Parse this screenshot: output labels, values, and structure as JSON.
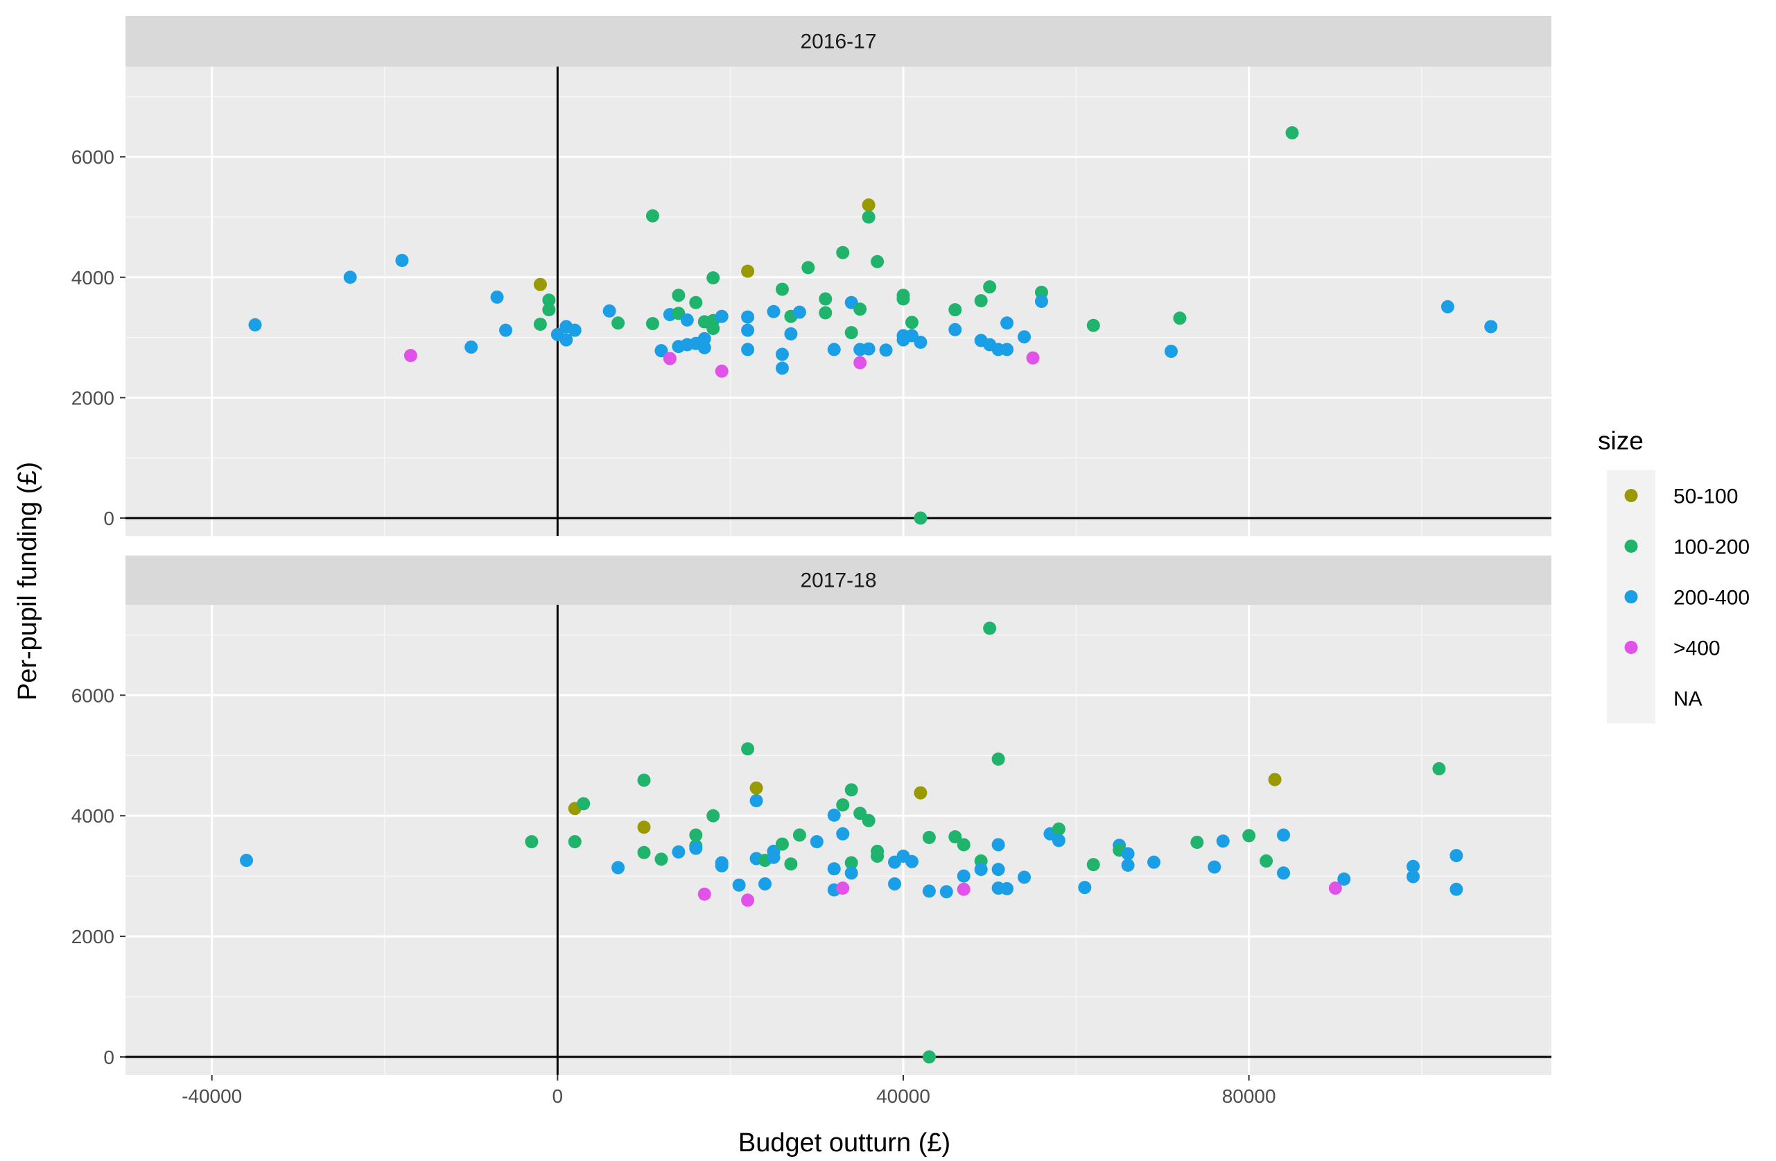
{
  "chart_data": {
    "type": "scatter",
    "xlabel": "Budget outturn (£)",
    "ylabel": "Per-pupil funding (£)",
    "xlim": [
      -50000,
      115000
    ],
    "ylim": [
      -300,
      7500
    ],
    "x_ticks": [
      -40000,
      0,
      40000,
      80000
    ],
    "x_tick_labels": [
      "-40000",
      "0",
      "40000",
      "80000"
    ],
    "y_ticks": [
      0,
      2000,
      4000,
      6000
    ],
    "y_tick_labels": [
      "0",
      "2000",
      "4000",
      "6000"
    ],
    "grid": true,
    "reference_lines": {
      "x": 0,
      "y": 0
    },
    "legend": {
      "title": "size",
      "position": "right",
      "entries": [
        {
          "label": "50-100",
          "color": "#999900"
        },
        {
          "label": "100-200",
          "color": "#1fb36b"
        },
        {
          "label": "200-400",
          "color": "#1a9fe6"
        },
        {
          "label": ">400",
          "color": "#e052e8"
        },
        {
          "label": "NA",
          "color": null
        }
      ]
    },
    "panels": [
      {
        "label": "2016-17",
        "points": [
          {
            "x": -35000,
            "y": 3210,
            "size": "200-400"
          },
          {
            "x": -24000,
            "y": 4000,
            "size": "200-400"
          },
          {
            "x": -18000,
            "y": 4280,
            "size": "200-400"
          },
          {
            "x": -17000,
            "y": 2700,
            "size": ">400"
          },
          {
            "x": -10000,
            "y": 2840,
            "size": "200-400"
          },
          {
            "x": -7000,
            "y": 3670,
            "size": "200-400"
          },
          {
            "x": -6000,
            "y": 3120,
            "size": "200-400"
          },
          {
            "x": -2000,
            "y": 3880,
            "size": "50-100"
          },
          {
            "x": -2000,
            "y": 3220,
            "size": "100-200"
          },
          {
            "x": -1000,
            "y": 3620,
            "size": "100-200"
          },
          {
            "x": -1000,
            "y": 3460,
            "size": "100-200"
          },
          {
            "x": 0,
            "y": 3050,
            "size": "200-400"
          },
          {
            "x": 1000,
            "y": 3180,
            "size": "200-400"
          },
          {
            "x": 1000,
            "y": 2960,
            "size": "200-400"
          },
          {
            "x": 2000,
            "y": 3120,
            "size": "200-400"
          },
          {
            "x": 6000,
            "y": 3440,
            "size": "200-400"
          },
          {
            "x": 7000,
            "y": 3240,
            "size": "100-200"
          },
          {
            "x": 11000,
            "y": 5020,
            "size": "100-200"
          },
          {
            "x": 11000,
            "y": 3230,
            "size": "100-200"
          },
          {
            "x": 12000,
            "y": 2780,
            "size": "200-400"
          },
          {
            "x": 13000,
            "y": 3380,
            "size": "200-400"
          },
          {
            "x": 13000,
            "y": 2650,
            "size": ">400"
          },
          {
            "x": 14000,
            "y": 3700,
            "size": "100-200"
          },
          {
            "x": 14000,
            "y": 3400,
            "size": "100-200"
          },
          {
            "x": 14000,
            "y": 2850,
            "size": "200-400"
          },
          {
            "x": 15000,
            "y": 3290,
            "size": "200-400"
          },
          {
            "x": 15000,
            "y": 2880,
            "size": "200-400"
          },
          {
            "x": 16000,
            "y": 3580,
            "size": "100-200"
          },
          {
            "x": 16000,
            "y": 2900,
            "size": "200-400"
          },
          {
            "x": 17000,
            "y": 3260,
            "size": "100-200"
          },
          {
            "x": 17000,
            "y": 2980,
            "size": "200-400"
          },
          {
            "x": 17000,
            "y": 2830,
            "size": "200-400"
          },
          {
            "x": 18000,
            "y": 3990,
            "size": "100-200"
          },
          {
            "x": 18000,
            "y": 3280,
            "size": "100-200"
          },
          {
            "x": 18000,
            "y": 3150,
            "size": "100-200"
          },
          {
            "x": 19000,
            "y": 3350,
            "size": "200-400"
          },
          {
            "x": 19000,
            "y": 2440,
            "size": ">400"
          },
          {
            "x": 22000,
            "y": 4100,
            "size": "50-100"
          },
          {
            "x": 22000,
            "y": 3340,
            "size": "200-400"
          },
          {
            "x": 22000,
            "y": 3120,
            "size": "200-400"
          },
          {
            "x": 22000,
            "y": 2800,
            "size": "200-400"
          },
          {
            "x": 25000,
            "y": 3430,
            "size": "200-400"
          },
          {
            "x": 26000,
            "y": 3800,
            "size": "100-200"
          },
          {
            "x": 26000,
            "y": 2720,
            "size": "200-400"
          },
          {
            "x": 26000,
            "y": 2490,
            "size": "200-400"
          },
          {
            "x": 27000,
            "y": 3350,
            "size": "100-200"
          },
          {
            "x": 27000,
            "y": 3060,
            "size": "200-400"
          },
          {
            "x": 28000,
            "y": 3420,
            "size": "200-400"
          },
          {
            "x": 29000,
            "y": 4160,
            "size": "100-200"
          },
          {
            "x": 31000,
            "y": 3640,
            "size": "100-200"
          },
          {
            "x": 31000,
            "y": 3410,
            "size": "100-200"
          },
          {
            "x": 32000,
            "y": 2800,
            "size": "200-400"
          },
          {
            "x": 33000,
            "y": 4410,
            "size": "100-200"
          },
          {
            "x": 34000,
            "y": 3580,
            "size": "200-400"
          },
          {
            "x": 34000,
            "y": 3080,
            "size": "100-200"
          },
          {
            "x": 35000,
            "y": 3470,
            "size": "100-200"
          },
          {
            "x": 35000,
            "y": 2800,
            "size": "200-400"
          },
          {
            "x": 35000,
            "y": 2580,
            "size": ">400"
          },
          {
            "x": 36000,
            "y": 5200,
            "size": "50-100"
          },
          {
            "x": 36000,
            "y": 5000,
            "size": "100-200"
          },
          {
            "x": 36000,
            "y": 2810,
            "size": "200-400"
          },
          {
            "x": 37000,
            "y": 4260,
            "size": "100-200"
          },
          {
            "x": 38000,
            "y": 2790,
            "size": "200-400"
          },
          {
            "x": 40000,
            "y": 3700,
            "size": "100-200"
          },
          {
            "x": 40000,
            "y": 3640,
            "size": "100-200"
          },
          {
            "x": 40000,
            "y": 3030,
            "size": "200-400"
          },
          {
            "x": 40000,
            "y": 2960,
            "size": "200-400"
          },
          {
            "x": 41000,
            "y": 3250,
            "size": "100-200"
          },
          {
            "x": 41000,
            "y": 3030,
            "size": "200-400"
          },
          {
            "x": 42000,
            "y": 2920,
            "size": "200-400"
          },
          {
            "x": 42000,
            "y": 0,
            "size": "100-200"
          },
          {
            "x": 46000,
            "y": 3460,
            "size": "100-200"
          },
          {
            "x": 46000,
            "y": 3130,
            "size": "200-400"
          },
          {
            "x": 49000,
            "y": 3610,
            "size": "100-200"
          },
          {
            "x": 49000,
            "y": 2950,
            "size": "200-400"
          },
          {
            "x": 50000,
            "y": 3840,
            "size": "100-200"
          },
          {
            "x": 50000,
            "y": 2880,
            "size": "200-400"
          },
          {
            "x": 51000,
            "y": 2800,
            "size": "200-400"
          },
          {
            "x": 52000,
            "y": 3240,
            "size": "200-400"
          },
          {
            "x": 52000,
            "y": 2800,
            "size": "200-400"
          },
          {
            "x": 54000,
            "y": 3010,
            "size": "200-400"
          },
          {
            "x": 55000,
            "y": 2660,
            "size": ">400"
          },
          {
            "x": 56000,
            "y": 3750,
            "size": "100-200"
          },
          {
            "x": 56000,
            "y": 3600,
            "size": "200-400"
          },
          {
            "x": 62000,
            "y": 3200,
            "size": "100-200"
          },
          {
            "x": 71000,
            "y": 2770,
            "size": "200-400"
          },
          {
            "x": 72000,
            "y": 3320,
            "size": "100-200"
          },
          {
            "x": 85000,
            "y": 6400,
            "size": "100-200"
          },
          {
            "x": 103000,
            "y": 3510,
            "size": "200-400"
          },
          {
            "x": 108000,
            "y": 3180,
            "size": "200-400"
          }
        ]
      },
      {
        "label": "2017-18",
        "points": [
          {
            "x": -36000,
            "y": 3260,
            "size": "200-400"
          },
          {
            "x": -3000,
            "y": 3570,
            "size": "100-200"
          },
          {
            "x": 2000,
            "y": 4120,
            "size": "50-100"
          },
          {
            "x": 2000,
            "y": 3570,
            "size": "100-200"
          },
          {
            "x": 3000,
            "y": 4200,
            "size": "100-200"
          },
          {
            "x": 7000,
            "y": 3140,
            "size": "200-400"
          },
          {
            "x": 10000,
            "y": 4590,
            "size": "100-200"
          },
          {
            "x": 10000,
            "y": 3810,
            "size": "50-100"
          },
          {
            "x": 10000,
            "y": 3390,
            "size": "100-200"
          },
          {
            "x": 12000,
            "y": 3280,
            "size": "100-200"
          },
          {
            "x": 14000,
            "y": 3400,
            "size": "200-400"
          },
          {
            "x": 16000,
            "y": 3680,
            "size": "100-200"
          },
          {
            "x": 16000,
            "y": 3500,
            "size": "100-200"
          },
          {
            "x": 16000,
            "y": 3460,
            "size": "200-400"
          },
          {
            "x": 17000,
            "y": 2700,
            "size": ">400"
          },
          {
            "x": 18000,
            "y": 4000,
            "size": "100-200"
          },
          {
            "x": 19000,
            "y": 3220,
            "size": "200-400"
          },
          {
            "x": 19000,
            "y": 3170,
            "size": "200-400"
          },
          {
            "x": 21000,
            "y": 2850,
            "size": "200-400"
          },
          {
            "x": 22000,
            "y": 5110,
            "size": "100-200"
          },
          {
            "x": 22000,
            "y": 2600,
            "size": ">400"
          },
          {
            "x": 23000,
            "y": 4460,
            "size": "50-100"
          },
          {
            "x": 23000,
            "y": 4250,
            "size": "200-400"
          },
          {
            "x": 23000,
            "y": 3290,
            "size": "200-400"
          },
          {
            "x": 24000,
            "y": 3260,
            "size": "100-200"
          },
          {
            "x": 24000,
            "y": 2870,
            "size": "200-400"
          },
          {
            "x": 25000,
            "y": 3410,
            "size": "200-400"
          },
          {
            "x": 25000,
            "y": 3310,
            "size": "200-400"
          },
          {
            "x": 26000,
            "y": 3530,
            "size": "100-200"
          },
          {
            "x": 27000,
            "y": 3200,
            "size": "100-200"
          },
          {
            "x": 28000,
            "y": 3680,
            "size": "100-200"
          },
          {
            "x": 30000,
            "y": 3570,
            "size": "200-400"
          },
          {
            "x": 32000,
            "y": 4010,
            "size": "200-400"
          },
          {
            "x": 32000,
            "y": 3120,
            "size": "200-400"
          },
          {
            "x": 32000,
            "y": 2770,
            "size": "200-400"
          },
          {
            "x": 33000,
            "y": 4180,
            "size": "100-200"
          },
          {
            "x": 33000,
            "y": 3700,
            "size": "200-400"
          },
          {
            "x": 33000,
            "y": 2800,
            "size": ">400"
          },
          {
            "x": 34000,
            "y": 4430,
            "size": "100-200"
          },
          {
            "x": 34000,
            "y": 3220,
            "size": "100-200"
          },
          {
            "x": 34000,
            "y": 3050,
            "size": "200-400"
          },
          {
            "x": 35000,
            "y": 4040,
            "size": "100-200"
          },
          {
            "x": 36000,
            "y": 3920,
            "size": "100-200"
          },
          {
            "x": 37000,
            "y": 3410,
            "size": "100-200"
          },
          {
            "x": 37000,
            "y": 3330,
            "size": "100-200"
          },
          {
            "x": 39000,
            "y": 3230,
            "size": "200-400"
          },
          {
            "x": 39000,
            "y": 2870,
            "size": "200-400"
          },
          {
            "x": 40000,
            "y": 3330,
            "size": "200-400"
          },
          {
            "x": 41000,
            "y": 3240,
            "size": "200-400"
          },
          {
            "x": 42000,
            "y": 4380,
            "size": "50-100"
          },
          {
            "x": 43000,
            "y": 3640,
            "size": "100-200"
          },
          {
            "x": 43000,
            "y": 2750,
            "size": "200-400"
          },
          {
            "x": 43000,
            "y": 0,
            "size": "100-200"
          },
          {
            "x": 45000,
            "y": 2740,
            "size": "200-400"
          },
          {
            "x": 46000,
            "y": 3650,
            "size": "100-200"
          },
          {
            "x": 47000,
            "y": 3520,
            "size": "100-200"
          },
          {
            "x": 47000,
            "y": 3000,
            "size": "200-400"
          },
          {
            "x": 47000,
            "y": 2780,
            "size": ">400"
          },
          {
            "x": 49000,
            "y": 3250,
            "size": "100-200"
          },
          {
            "x": 49000,
            "y": 3110,
            "size": "200-400"
          },
          {
            "x": 50000,
            "y": 7110,
            "size": "100-200"
          },
          {
            "x": 51000,
            "y": 4940,
            "size": "100-200"
          },
          {
            "x": 51000,
            "y": 3520,
            "size": "200-400"
          },
          {
            "x": 51000,
            "y": 3110,
            "size": "200-400"
          },
          {
            "x": 51000,
            "y": 2800,
            "size": "200-400"
          },
          {
            "x": 52000,
            "y": 2790,
            "size": "200-400"
          },
          {
            "x": 54000,
            "y": 2980,
            "size": "200-400"
          },
          {
            "x": 57000,
            "y": 3700,
            "size": "200-400"
          },
          {
            "x": 58000,
            "y": 3780,
            "size": "100-200"
          },
          {
            "x": 58000,
            "y": 3590,
            "size": "200-400"
          },
          {
            "x": 61000,
            "y": 2810,
            "size": "200-400"
          },
          {
            "x": 62000,
            "y": 3190,
            "size": "100-200"
          },
          {
            "x": 65000,
            "y": 3510,
            "size": "200-400"
          },
          {
            "x": 65000,
            "y": 3430,
            "size": "100-200"
          },
          {
            "x": 66000,
            "y": 3370,
            "size": "200-400"
          },
          {
            "x": 66000,
            "y": 3180,
            "size": "200-400"
          },
          {
            "x": 69000,
            "y": 3230,
            "size": "200-400"
          },
          {
            "x": 74000,
            "y": 3560,
            "size": "100-200"
          },
          {
            "x": 76000,
            "y": 3150,
            "size": "200-400"
          },
          {
            "x": 77000,
            "y": 3580,
            "size": "200-400"
          },
          {
            "x": 80000,
            "y": 3670,
            "size": "100-200"
          },
          {
            "x": 82000,
            "y": 3250,
            "size": "100-200"
          },
          {
            "x": 83000,
            "y": 4600,
            "size": "50-100"
          },
          {
            "x": 84000,
            "y": 3680,
            "size": "200-400"
          },
          {
            "x": 84000,
            "y": 3050,
            "size": "200-400"
          },
          {
            "x": 90000,
            "y": 2800,
            "size": ">400"
          },
          {
            "x": 91000,
            "y": 2950,
            "size": "200-400"
          },
          {
            "x": 99000,
            "y": 3160,
            "size": "200-400"
          },
          {
            "x": 99000,
            "y": 2990,
            "size": "200-400"
          },
          {
            "x": 102000,
            "y": 4780,
            "size": "100-200"
          },
          {
            "x": 104000,
            "y": 3340,
            "size": "200-400"
          },
          {
            "x": 104000,
            "y": 2780,
            "size": "200-400"
          }
        ]
      }
    ]
  }
}
